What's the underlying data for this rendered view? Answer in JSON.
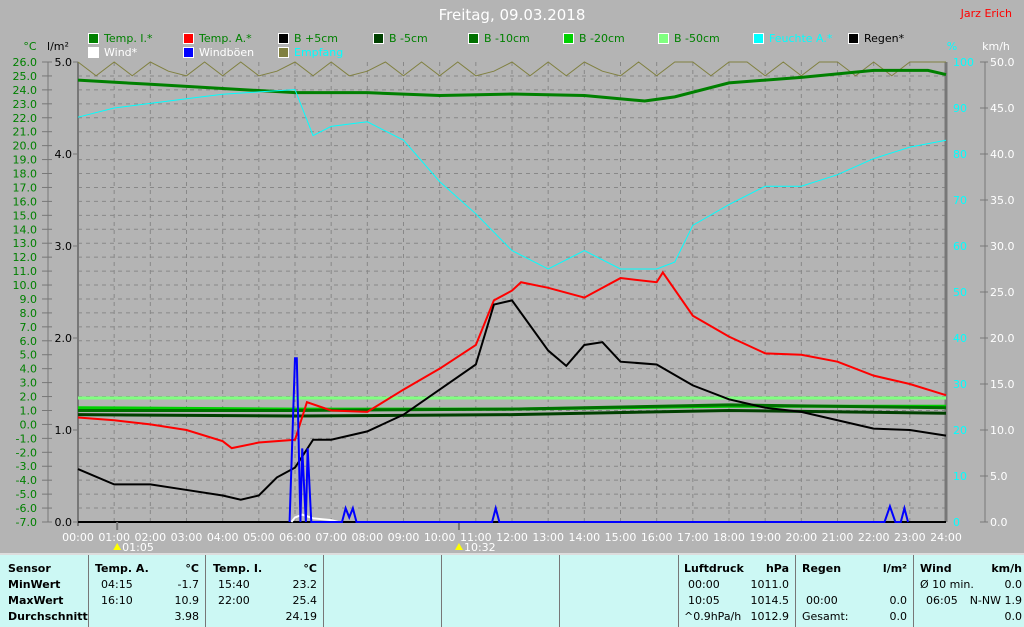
{
  "header": {
    "title": "Freitag, 09.03.2018",
    "author": "Jarz Erich"
  },
  "legend": [
    {
      "label": "Temp. I.*",
      "color": "#008000",
      "text_color": "#008000"
    },
    {
      "label": "Temp. A.*",
      "color": "#ff0000",
      "text_color": "#008000"
    },
    {
      "label": "B +5cm",
      "color": "#000000",
      "text_color": "#008000"
    },
    {
      "label": "B -5cm",
      "color": "#004000",
      "text_color": "#008000"
    },
    {
      "label": "B -10cm",
      "color": "#007000",
      "text_color": "#008000"
    },
    {
      "label": "B -20cm",
      "color": "#00d000",
      "text_color": "#008000"
    },
    {
      "label": "B -50cm",
      "color": "#80ff80",
      "text_color": "#008000"
    },
    {
      "label": "Feuchte A.*",
      "color": "#00ffff",
      "text_color": "#00ffff"
    },
    {
      "label": "Regen*",
      "color": "#000000",
      "text_color": "#000000"
    },
    {
      "label": "Wind*",
      "color": "#ffffff",
      "text_color": "#ffffff"
    },
    {
      "label": "Windböen",
      "color": "#0000ff",
      "text_color": "#ffffff"
    },
    {
      "label": "Empfang",
      "color": "#808040",
      "text_color": "#00ffff"
    }
  ],
  "chart_data": {
    "type": "line",
    "x_unit": "time of day",
    "xlim": [
      "00:00",
      "24:00"
    ],
    "x_ticks": [
      "00:00",
      "01:00",
      "02:00",
      "03:00",
      "04:00",
      "05:00",
      "06:00",
      "07:00",
      "08:00",
      "09:00",
      "10:00",
      "11:00",
      "12:00",
      "13:00",
      "14:00",
      "15:00",
      "16:00",
      "17:00",
      "18:00",
      "19:00",
      "20:00",
      "21:00",
      "22:00",
      "23:00",
      "24:00"
    ],
    "axes": {
      "temp": {
        "label": "°C",
        "lim": [
          -7,
          26
        ],
        "ticks": [
          "26.0",
          "25.0",
          "24.0",
          "23.0",
          "22.0",
          "21.0",
          "20.0",
          "19.0",
          "18.0",
          "17.0",
          "16.0",
          "15.0",
          "14.0",
          "13.0",
          "12.0",
          "11.0",
          "10.0",
          "9.0",
          "8.0",
          "7.0",
          "6.0",
          "5.0",
          "4.0",
          "3.0",
          "2.0",
          "1.0",
          "0.0",
          "-1.0",
          "-2.0",
          "-3.0",
          "-4.0",
          "-5.0",
          "-6.0",
          "-7.0"
        ]
      },
      "rain": {
        "label": "l/m²",
        "lim": [
          0,
          5
        ],
        "ticks": [
          "5.0",
          "4.0",
          "3.0",
          "2.0",
          "1.0",
          "0.0"
        ]
      },
      "humidity": {
        "label": "%",
        "lim": [
          0,
          100
        ],
        "ticks": [
          "100",
          "90",
          "80",
          "70",
          "60",
          "50",
          "40",
          "30",
          "20",
          "10",
          "0"
        ]
      },
      "wind": {
        "label": "km/h",
        "lim": [
          0,
          50
        ],
        "ticks": [
          "50.0",
          "45.0",
          "40.0",
          "35.0",
          "30.0",
          "25.0",
          "20.0",
          "15.0",
          "10.0",
          "5.0",
          "0.0"
        ]
      }
    },
    "grid": true,
    "markers": [
      {
        "time": "01:05",
        "label": "01:05"
      },
      {
        "time": "10:32",
        "label": "10:32"
      }
    ],
    "series": [
      {
        "name": "Empfang",
        "axis": "humidity",
        "color": "#808040",
        "x": [
          0,
          0.5,
          1,
          1.5,
          2,
          2.5,
          3,
          3.5,
          4,
          4.5,
          5,
          5.5,
          6,
          6.5,
          7,
          7.5,
          8,
          8.5,
          9,
          9.5,
          10,
          10.5,
          11,
          11.5,
          12,
          12.5,
          13,
          13.5,
          14,
          14.5,
          15,
          15.5,
          16,
          16.5,
          17,
          17.5,
          18,
          18.5,
          19,
          19.5,
          20,
          20.5,
          21,
          21.5,
          22,
          22.5,
          23,
          23.5,
          24
        ],
        "y": [
          100,
          97,
          100,
          97,
          100,
          98,
          97,
          100,
          97,
          100,
          97,
          98,
          100,
          97,
          100,
          97,
          98,
          100,
          97,
          100,
          97,
          100,
          97,
          98,
          100,
          97,
          100,
          97,
          100,
          98,
          97,
          100,
          97,
          100,
          100,
          97,
          100,
          100,
          97,
          100,
          97,
          100,
          100,
          97,
          100,
          97,
          100,
          100,
          100
        ]
      },
      {
        "name": "Temp. I.*",
        "axis": "temp",
        "color": "#008000",
        "x": [
          0,
          2,
          4,
          6,
          8,
          10,
          12,
          14,
          15.67,
          16.5,
          18,
          20,
          22,
          23.5,
          24
        ],
        "y": [
          24.7,
          24.4,
          24.1,
          23.8,
          23.8,
          23.6,
          23.7,
          23.6,
          23.2,
          23.5,
          24.5,
          24.9,
          25.4,
          25.4,
          25.1
        ]
      },
      {
        "name": "B -50cm",
        "axis": "temp",
        "color": "#80ff80",
        "x": [
          0,
          24
        ],
        "y": [
          1.9,
          1.9
        ]
      },
      {
        "name": "B -20cm",
        "axis": "temp",
        "color": "#00d000",
        "x": [
          0,
          6,
          12,
          18,
          24
        ],
        "y": [
          1.2,
          1.1,
          1.1,
          1.3,
          1.3
        ]
      },
      {
        "name": "B -10cm",
        "axis": "temp",
        "color": "#007000",
        "x": [
          0,
          6,
          12,
          18,
          24
        ],
        "y": [
          1.0,
          1.0,
          1.1,
          1.4,
          1.2
        ]
      },
      {
        "name": "B -5cm",
        "axis": "temp",
        "color": "#004000",
        "x": [
          0,
          6,
          12,
          18,
          24
        ],
        "y": [
          0.7,
          0.6,
          0.7,
          1.0,
          0.8
        ]
      },
      {
        "name": "Feuchte A.*",
        "axis": "humidity",
        "color": "#00ffff",
        "x": [
          0,
          1,
          2,
          3,
          4,
          5,
          6,
          6.5,
          7,
          8,
          9,
          10,
          11,
          12,
          13,
          14,
          15,
          16,
          16.5,
          17,
          18,
          19,
          20,
          21,
          22,
          23,
          24
        ],
        "y": [
          88,
          90,
          91,
          92,
          93,
          93.5,
          94,
          84,
          86,
          87,
          83,
          74,
          67,
          59,
          55,
          59,
          55,
          55,
          56.5,
          64.5,
          69,
          73,
          73,
          75.5,
          79,
          81.5,
          83
        ]
      },
      {
        "name": "Temp. A.*",
        "axis": "temp",
        "color": "#ff0000",
        "x": [
          0,
          1,
          2,
          3,
          4,
          4.25,
          5,
          6,
          6.33,
          7,
          8,
          9,
          10,
          11,
          11.5,
          12,
          12.25,
          13,
          14,
          15,
          16,
          16.17,
          17,
          18,
          19,
          20,
          21,
          22,
          23,
          24
        ],
        "y": [
          0.5,
          0.3,
          0.0,
          -0.4,
          -1.2,
          -1.7,
          -1.3,
          -1.1,
          1.6,
          1.0,
          0.9,
          2.5,
          4.0,
          5.7,
          8.9,
          9.6,
          10.2,
          9.8,
          9.1,
          10.5,
          10.2,
          10.9,
          7.8,
          6.3,
          5.1,
          5.0,
          4.5,
          3.5,
          2.9,
          2.1
        ]
      },
      {
        "name": "B +5cm",
        "axis": "temp",
        "color": "#000000",
        "x": [
          0,
          1,
          2,
          3,
          4,
          4.5,
          5,
          5.5,
          6,
          6.5,
          7,
          8,
          9,
          10,
          11,
          11.5,
          12,
          13,
          13.5,
          14,
          14.5,
          15,
          16,
          17,
          18,
          19,
          20,
          21,
          22,
          23,
          24
        ],
        "y": [
          -3.2,
          -4.3,
          -4.3,
          -4.7,
          -5.1,
          -5.4,
          -5.1,
          -3.8,
          -3.1,
          -1.1,
          -1.1,
          -0.5,
          0.7,
          2.5,
          4.3,
          8.6,
          8.9,
          5.3,
          4.2,
          5.7,
          5.9,
          4.5,
          4.3,
          2.8,
          1.8,
          1.2,
          0.9,
          0.3,
          -0.3,
          -0.4,
          -0.8
        ]
      },
      {
        "name": "Wind*",
        "axis": "wind",
        "color": "#ffffff",
        "x": [
          5.9,
          6,
          6.2,
          6.5,
          7,
          7.2
        ],
        "y": [
          0,
          0.5,
          0.8,
          0.4,
          0.2,
          0
        ]
      },
      {
        "name": "Windböen",
        "axis": "wind",
        "color": "#0000ff",
        "x": [
          5.85,
          6.0,
          6.05,
          6.15,
          6.2,
          6.3,
          6.35,
          6.45,
          6.5,
          7.3,
          7.4,
          7.5,
          7.6,
          7.7,
          11.45,
          11.55,
          11.65,
          22.3,
          22.45,
          22.6,
          22.75,
          22.85,
          22.95
        ],
        "y": [
          0,
          17.8,
          17.8,
          0,
          8.0,
          0,
          8.0,
          0,
          0,
          0,
          1.5,
          0.5,
          1.5,
          0,
          0,
          1.5,
          0,
          0,
          1.7,
          0,
          0,
          1.5,
          0
        ]
      }
    ]
  },
  "table": {
    "sensor": {
      "header": "Sensor",
      "rows": [
        "MinWert",
        "MaxWert",
        "Durchschnitt"
      ]
    },
    "temp_a": {
      "header": "Temp. A.",
      "unit": "°C",
      "rows": [
        [
          "04:15",
          "-1.7"
        ],
        [
          "16:10",
          "10.9"
        ],
        [
          "",
          "3.98"
        ]
      ]
    },
    "temp_i": {
      "header": "Temp. I.",
      "unit": "°C",
      "rows": [
        [
          "15:40",
          "23.2"
        ],
        [
          "22:00",
          "25.4"
        ],
        [
          "",
          "24.19"
        ]
      ]
    },
    "pressure": {
      "header": "Luftdruck",
      "unit": "hPa",
      "rows": [
        [
          "00:00",
          "1011.0"
        ],
        [
          "10:05",
          "1014.5"
        ],
        [
          "^0.9hPa/h",
          "1012.9"
        ]
      ]
    },
    "rain": {
      "header": "Regen",
      "unit": "l/m²",
      "rows": [
        [
          "",
          ""
        ],
        [
          "00:00",
          "0.0"
        ],
        [
          "Gesamt:",
          "0.0"
        ]
      ]
    },
    "wind": {
      "header": "Wind",
      "unit": "km/h",
      "rows": [
        [
          "Ø 10 min.",
          "0.0"
        ],
        [
          "06:05",
          "N-NW 1.9"
        ],
        [
          "",
          "0.0"
        ]
      ]
    }
  }
}
